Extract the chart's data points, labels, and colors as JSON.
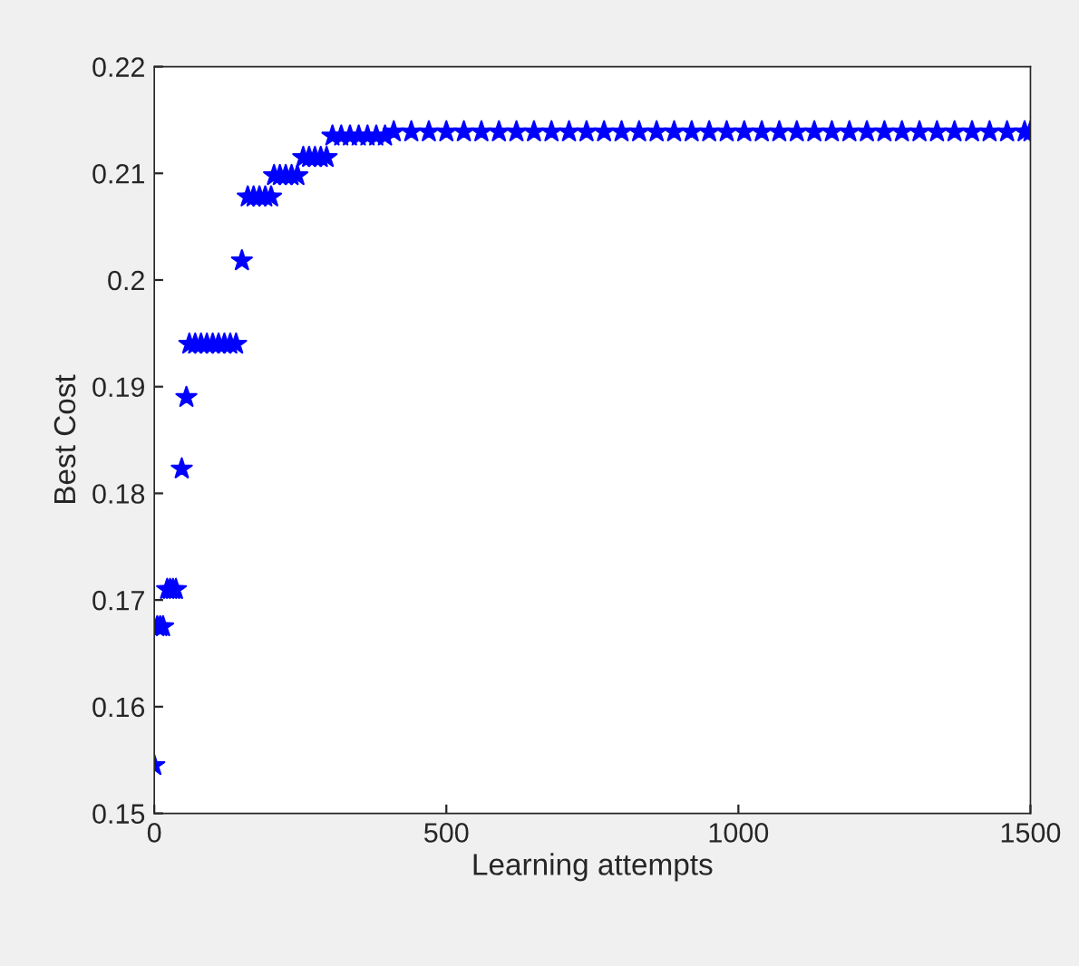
{
  "chart_data": {
    "type": "scatter",
    "xlabel": "Learning attempts",
    "ylabel": "Best Cost",
    "xlim": [
      0,
      1500
    ],
    "ylim": [
      0.15,
      0.22
    ],
    "xticks": [
      0,
      500,
      1000,
      1500
    ],
    "yticks": [
      0.15,
      0.16,
      0.17,
      0.18,
      0.19,
      0.2,
      0.21,
      0.22
    ],
    "grid": false,
    "legend": false,
    "marker": "star",
    "series": [
      {
        "color": "#0000ff",
        "x": [
          0,
          5,
          10,
          15,
          22,
          27,
          32,
          37,
          47,
          55,
          60,
          70,
          80,
          90,
          100,
          110,
          120,
          130,
          140,
          150,
          160,
          170,
          180,
          190,
          200,
          205,
          215,
          225,
          235,
          245,
          255,
          265,
          275,
          285,
          295,
          305,
          320,
          335,
          350,
          365,
          380,
          395,
          410,
          440,
          470,
          500,
          530,
          560,
          590,
          620,
          650,
          680,
          710,
          740,
          770,
          800,
          830,
          860,
          890,
          920,
          950,
          980,
          1010,
          1040,
          1070,
          1100,
          1130,
          1160,
          1190,
          1220,
          1250,
          1280,
          1310,
          1340,
          1370,
          1400,
          1430,
          1460,
          1490,
          1500
        ],
        "values": [
          0.1545,
          0.1675,
          0.1675,
          0.1675,
          0.171,
          0.171,
          0.171,
          0.171,
          0.1823,
          0.189,
          0.194,
          0.194,
          0.194,
          0.194,
          0.194,
          0.194,
          0.194,
          0.194,
          0.194,
          0.2018,
          0.2078,
          0.2078,
          0.2078,
          0.2078,
          0.2078,
          0.2098,
          0.2098,
          0.2098,
          0.2098,
          0.2098,
          0.2115,
          0.2115,
          0.2115,
          0.2115,
          0.2115,
          0.2135,
          0.2135,
          0.2135,
          0.2135,
          0.2135,
          0.2135,
          0.2135,
          0.2139,
          0.2139,
          0.2139,
          0.2139,
          0.2139,
          0.2139,
          0.2139,
          0.2139,
          0.2139,
          0.2139,
          0.2139,
          0.2139,
          0.2139,
          0.2139,
          0.2139,
          0.2139,
          0.2139,
          0.2139,
          0.2139,
          0.2139,
          0.2139,
          0.2139,
          0.2139,
          0.2139,
          0.2139,
          0.2139,
          0.2139,
          0.2139,
          0.2139,
          0.2139,
          0.2139,
          0.2139,
          0.2139,
          0.2139,
          0.2139,
          0.2139,
          0.2139,
          0.2139
        ]
      }
    ]
  }
}
